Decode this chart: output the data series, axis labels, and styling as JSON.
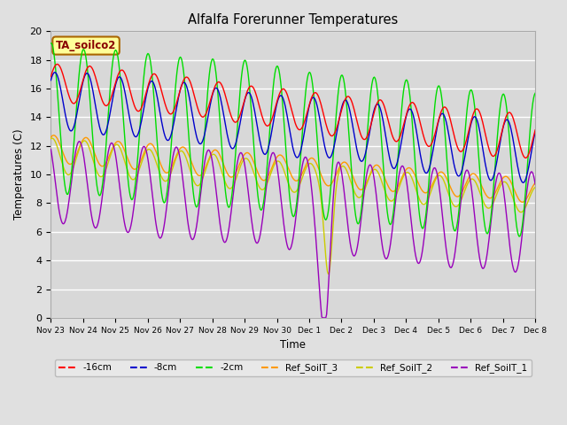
{
  "title": "Alfalfa Forerunner Temperatures",
  "ylabel": "Temperatures (C)",
  "xlabel": "Time",
  "annotation": "TA_soilco2",
  "ylim": [
    0,
    20
  ],
  "series": {
    "-16cm": {
      "color": "#ff0000"
    },
    "-8cm": {
      "color": "#0000cc"
    },
    "-2cm": {
      "color": "#00dd00"
    },
    "Ref_SoilT_3": {
      "color": "#ff9900"
    },
    "Ref_SoilT_2": {
      "color": "#cccc00"
    },
    "Ref_SoilT_1": {
      "color": "#9900bb"
    }
  },
  "xtick_labels": [
    "Nov 23",
    "Nov 24",
    "Nov 25",
    "Nov 26",
    "Nov 27",
    "Nov 28",
    "Nov 29",
    "Nov 30",
    "Dec 1",
    "Dec 2",
    "Dec 3",
    "Dec 4",
    "Dec 5",
    "Dec 6",
    "Dec 7",
    "Dec 8"
  ]
}
